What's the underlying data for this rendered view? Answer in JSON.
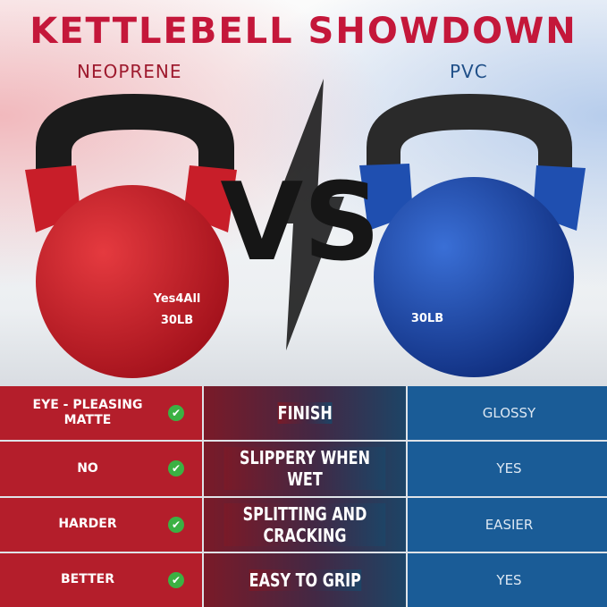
{
  "title": "KETTLEBELL SHOWDOWN",
  "left_label": "NEOPRENE",
  "right_label": "PVC",
  "vs": "VS",
  "kettlebells": {
    "red": {
      "brand": "Yes4All",
      "weight": "30LB",
      "color": "#d0212e"
    },
    "blue": {
      "weight": "30LB",
      "color": "#1f4fb0"
    }
  },
  "colors": {
    "title": "#c4173a",
    "neoprene": "#b41e2b",
    "pvc": "#1a5c97",
    "check": "#3bb143"
  },
  "rows": [
    {
      "neoprene": "EYE - PLEASING MATTE",
      "feature": "FINISH",
      "pvc": "GLOSSY",
      "icon": "check-circle-icon"
    },
    {
      "neoprene": "NO",
      "feature": "SLIPPERY WHEN WET",
      "pvc": "YES",
      "icon": "check-circle-icon"
    },
    {
      "neoprene": "HARDER",
      "feature": "SPLITTING AND CRACKING",
      "pvc": "EASIER",
      "icon": "check-circle-icon"
    },
    {
      "neoprene": "BETTER",
      "feature": "EASY TO GRIP",
      "pvc": "YES",
      "icon": "check-circle-icon"
    }
  ]
}
